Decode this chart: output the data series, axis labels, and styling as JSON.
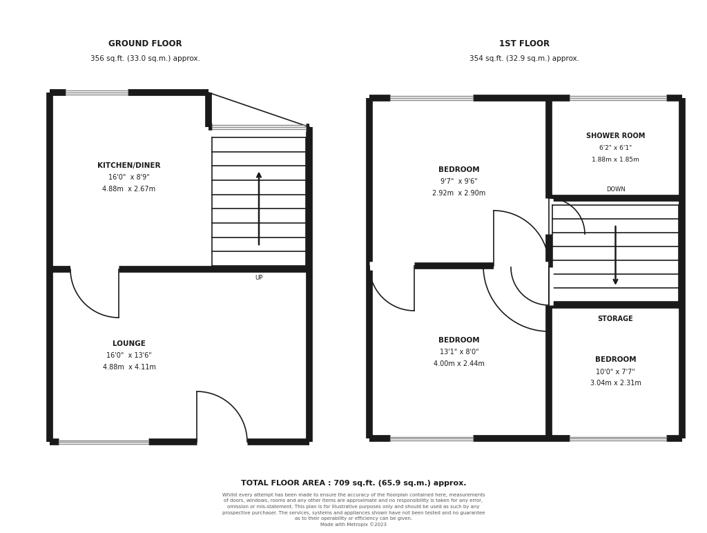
{
  "bg_color": "#ffffff",
  "wall_color": "#1a1a1a",
  "wall_lw": 7,
  "thin_lw": 1.2,
  "ground_floor_title": "GROUND FLOOR",
  "ground_floor_subtitle": "356 sq.ft. (33.0 sq.m.) approx.",
  "first_floor_title": "1ST FLOOR",
  "first_floor_subtitle": "354 sq.ft. (32.9 sq.m.) approx.",
  "total_area": "TOTAL FLOOR AREA : 709 sq.ft. (65.9 sq.m.) approx.",
  "disclaimer_line1": "Whilst every attempt has been made to ensure the accuracy of the floorplan contained here, measurements",
  "disclaimer_line2": "of doors, windows, rooms and any other items are approximate and no responsibility is taken for any error,",
  "disclaimer_line3": "omission or mis-statement. This plan is for illustrative purposes only and should be used as such by any",
  "disclaimer_line4": "prospective purchaser. The services, systems and appliances shown have not been tested and no guarantee",
  "disclaimer_line5": "as to their operability or efficiency can be given.",
  "disclaimer_line6": "Made with Metropix ©2023",
  "rooms": {
    "kitchen": {
      "label": "KITCHEN/DINER",
      "line2": "16'0\"  x 8'9\"",
      "line3": "4.88m  x 2.67m"
    },
    "lounge": {
      "label": "LOUNGE",
      "line2": "16'0\"  x 13'6\"",
      "line3": "4.88m  x 4.11m"
    },
    "bed1": {
      "label": "BEDROOM",
      "line2": "9'7\"  x 9'6\"",
      "line3": "2.92m  x 2.90m"
    },
    "shower": {
      "label": "SHOWER ROOM",
      "line2": "6'2\" x 6'1\"",
      "line3": "1.88m x 1.85m"
    },
    "bed2": {
      "label": "BEDROOM",
      "line2": "13'1\" x 8'0\"",
      "line3": "4.00m x 2.44m"
    },
    "storage": {
      "label": "STORAGE",
      "line2": "",
      "line3": ""
    },
    "bed3": {
      "label": "BEDROOM",
      "line2": "10'0\" x 7'7\"",
      "line3": "3.04m x 2.31m"
    }
  }
}
